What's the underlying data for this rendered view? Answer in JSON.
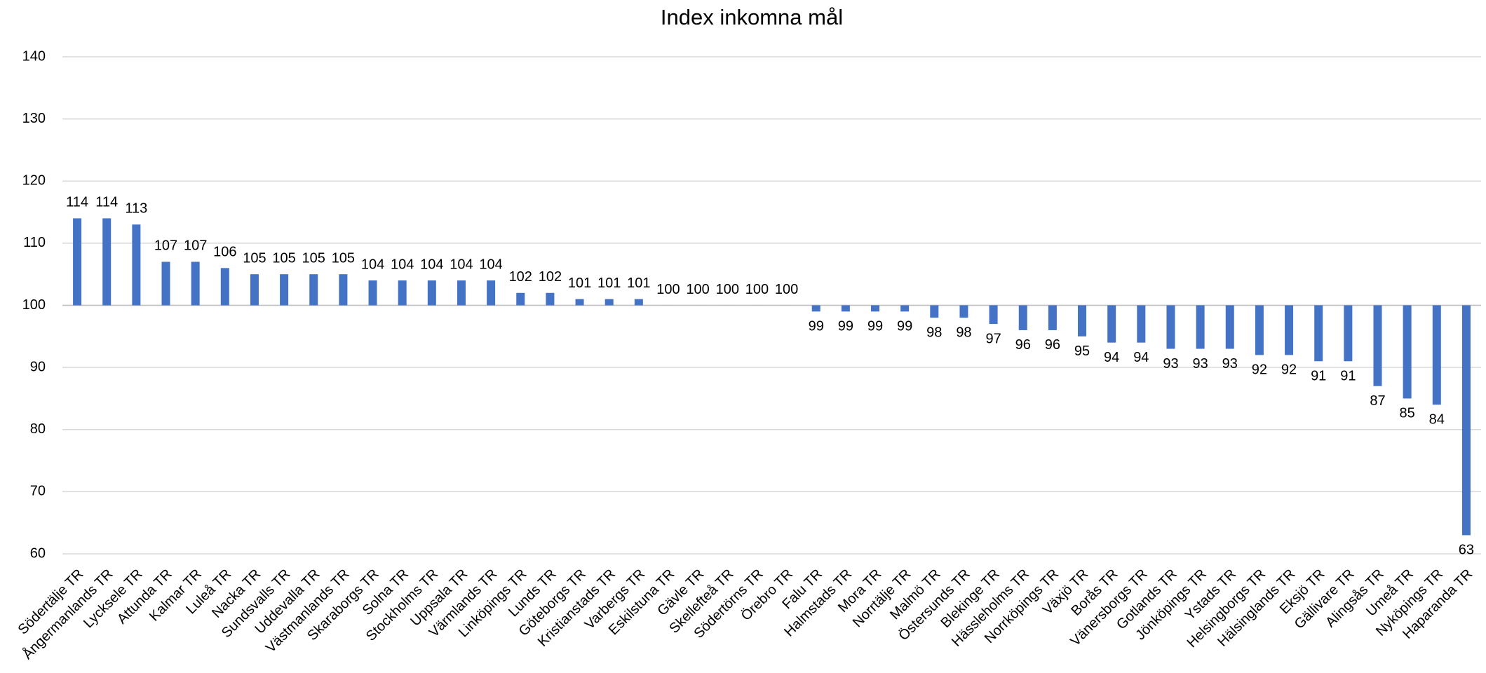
{
  "chart_data": {
    "type": "bar",
    "title": "Index inkomna mål",
    "categories": [
      "Södertälje TR",
      "Ångermanlands TR",
      "Lycksele TR",
      "Attunda TR",
      "Kalmar TR",
      "Luleå TR",
      "Nacka TR",
      "Sundsvalls TR",
      "Uddevalla TR",
      "Västmanlands TR",
      "Skaraborgs TR",
      "Solna TR",
      "Stockholms TR",
      "Uppsala TR",
      "Värmlands TR",
      "Linköpings TR",
      "Lunds TR",
      "Göteborgs TR",
      "Kristianstads TR",
      "Varbergs TR",
      "Eskilstuna TR",
      "Gävle TR",
      "Skellefteå TR",
      "Södertörns TR",
      "Örebro TR",
      "Falu TR",
      "Halmstads TR",
      "Mora TR",
      "Norrtälje TR",
      "Malmö TR",
      "Östersunds TR",
      "Blekinge TR",
      "Hässleholms TR",
      "Norrköpings TR",
      "Växjö TR",
      "Borås TR",
      "Vänersborgs TR",
      "Gotlands TR",
      "Jönköpings TR",
      "Ystads TR",
      "Helsingborgs TR",
      "Hälsinglands TR",
      "Eksjö TR",
      "Gällivare TR",
      "Alingsås TR",
      "Umeå TR",
      "Nyköpings TR",
      "Haparanda TR"
    ],
    "values": [
      114,
      114,
      113,
      107,
      107,
      106,
      105,
      105,
      105,
      105,
      104,
      104,
      104,
      104,
      104,
      102,
      102,
      101,
      101,
      101,
      100,
      100,
      100,
      100,
      100,
      99,
      99,
      99,
      99,
      98,
      98,
      97,
      96,
      96,
      95,
      94,
      94,
      93,
      93,
      93,
      92,
      92,
      91,
      91,
      87,
      85,
      84,
      63
    ],
    "color": "#4472c4",
    "ylim": [
      60,
      140
    ],
    "yticks": [
      60,
      70,
      80,
      90,
      100,
      110,
      120,
      130,
      140
    ],
    "grid": true,
    "x_axis_crosses": 100
  }
}
